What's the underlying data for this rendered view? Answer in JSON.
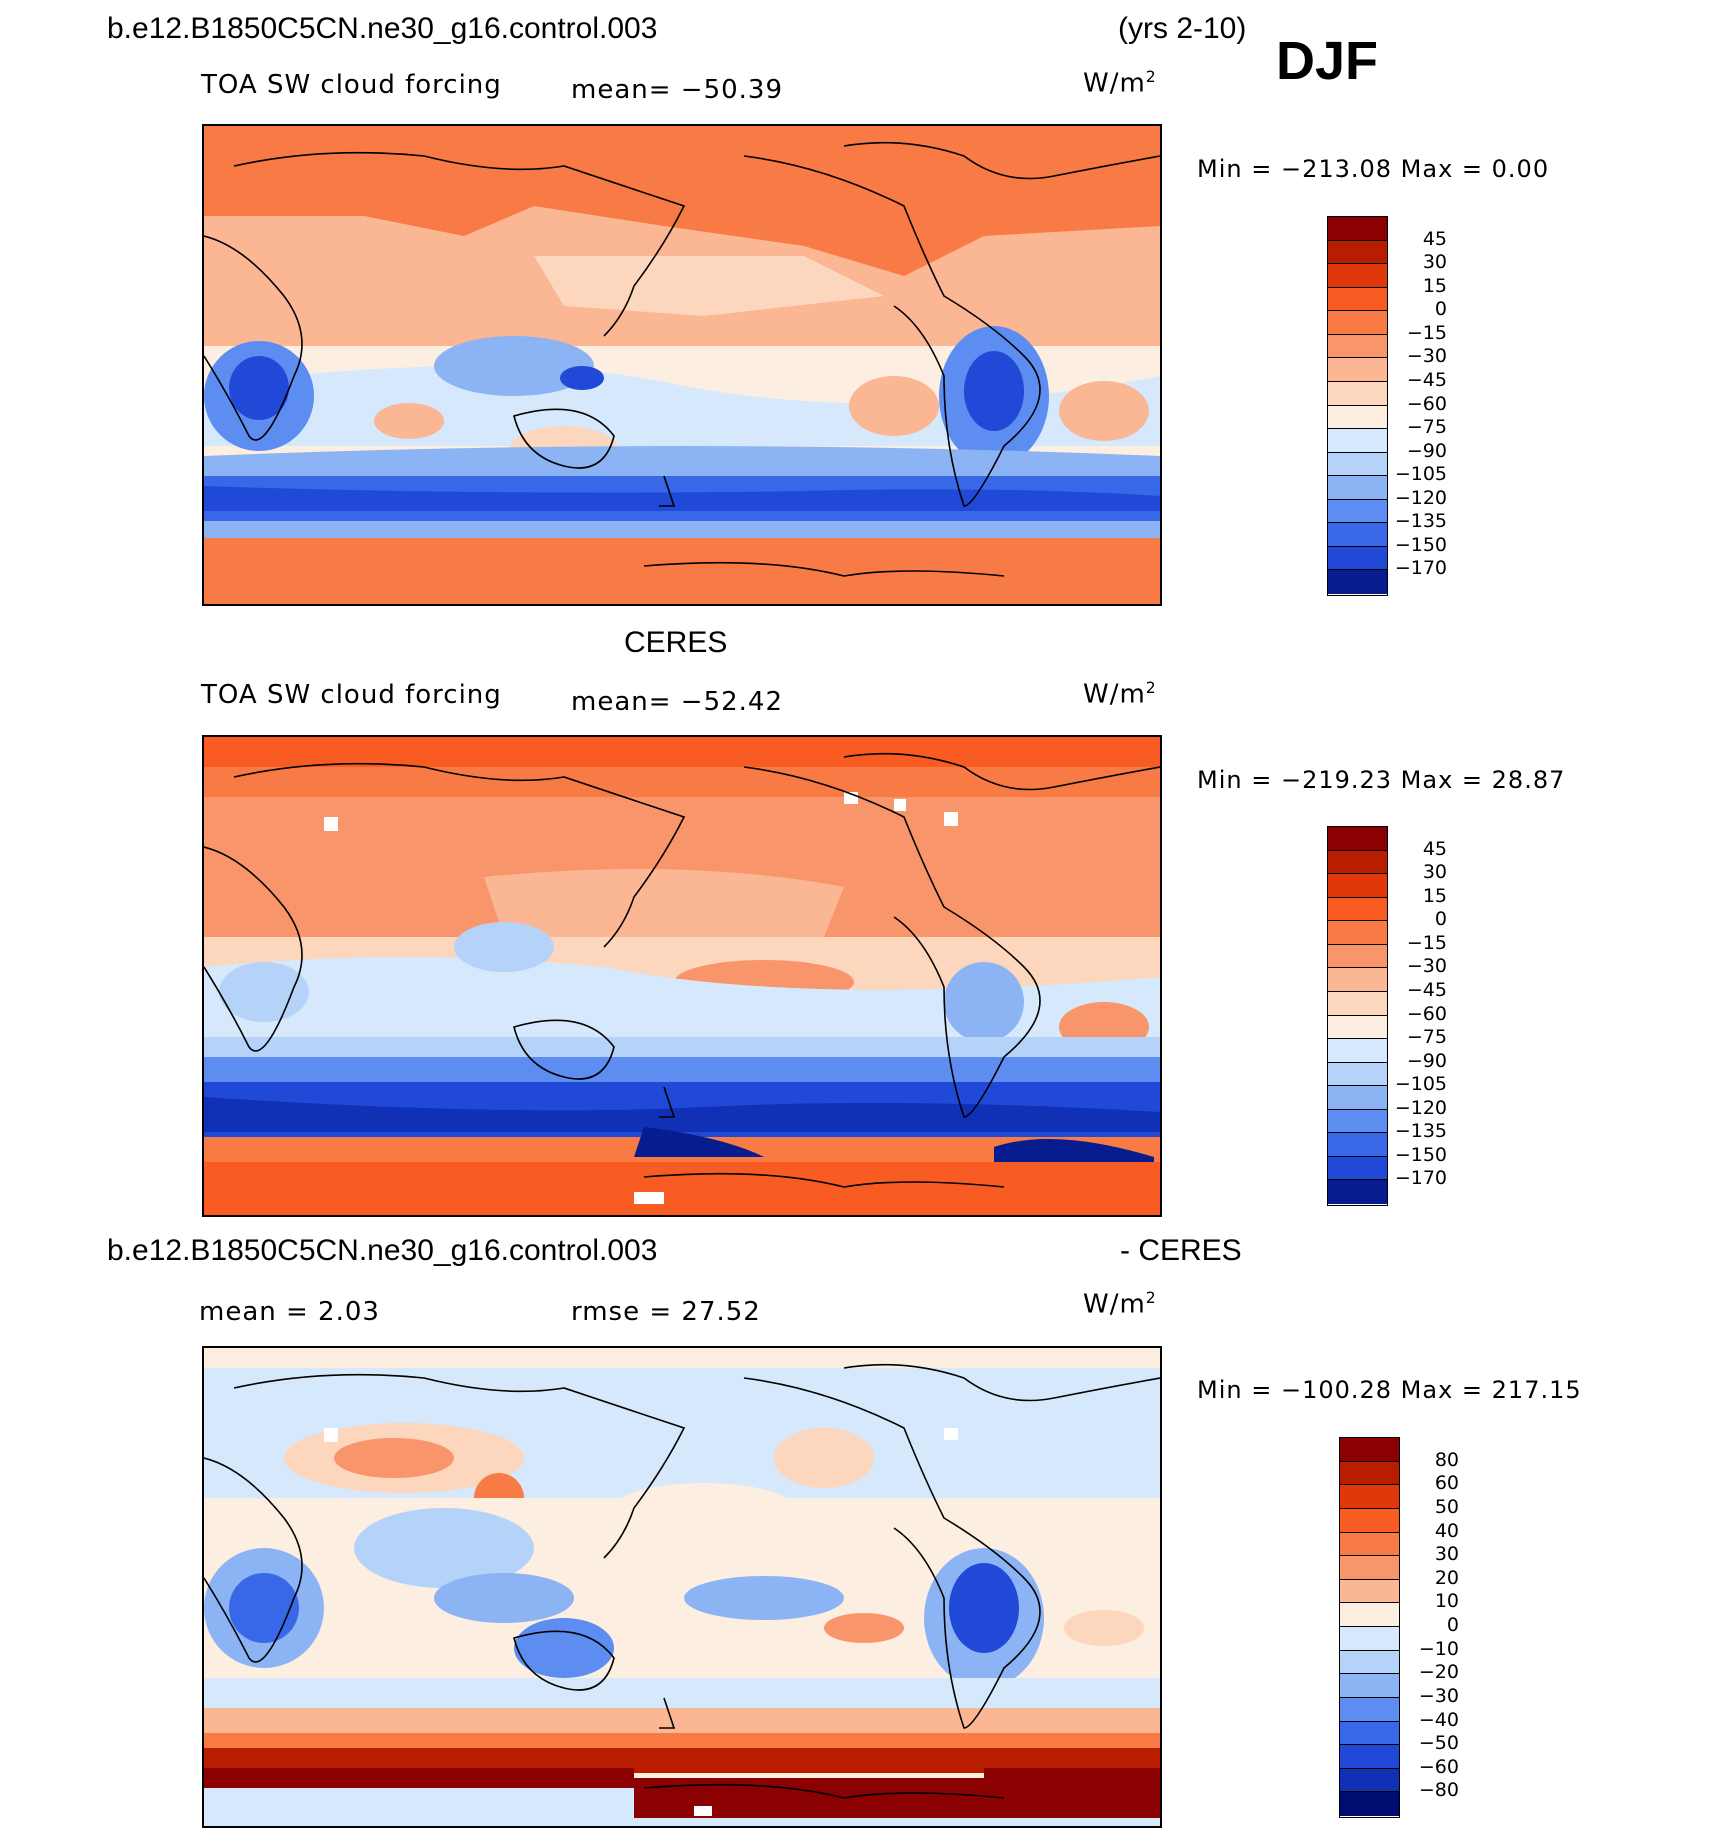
{
  "header": {
    "case_name": "b.e12.B1850C5CN.ne30_g16.control.003",
    "years": "(yrs 2-10)",
    "season": "DJF"
  },
  "panels": [
    {
      "id": "model",
      "title": "",
      "variable": "TOA SW cloud forcing",
      "mean_text": "mean= −50.39",
      "units": "W/m",
      "units_exp": "2",
      "min_max": "Min  =  −213.08  Max  =     0.00",
      "contour_levels": [
        "45",
        "30",
        "15",
        "0",
        "−15",
        "−30",
        "−45",
        "−60",
        "−75",
        "−90",
        "−105",
        "−120",
        "−135",
        "−150",
        "−170"
      ],
      "colors": [
        "#8b0000",
        "#b81d00",
        "#e0380a",
        "#f85c22",
        "#f87a44",
        "#f9956a",
        "#fbb694",
        "#fcd6bd",
        "#fdeee2",
        "#d6e8fb",
        "#b5d2f8",
        "#8cb3f3",
        "#5d8df0",
        "#3868e8",
        "#1f49d6",
        "#1030b5",
        "#061c8f",
        "#000d70"
      ]
    },
    {
      "id": "obs",
      "title": "CERES",
      "variable": "TOA SW cloud forcing",
      "mean_text": "mean= −52.42",
      "units": "W/m",
      "units_exp": "2",
      "min_max": "Min  =  −219.23  Max  =   28.87",
      "contour_levels": [
        "45",
        "30",
        "15",
        "0",
        "−15",
        "−30",
        "−45",
        "−60",
        "−75",
        "−90",
        "−105",
        "−120",
        "−135",
        "−150",
        "−170"
      ]
    },
    {
      "id": "diff",
      "title_left": "b.e12.B1850C5CN.ne30_g16.control.003",
      "title_right": "- CERES",
      "mean_text": "mean  =     2.03",
      "rmse_text": "rmse  =    27.52",
      "units": "W/m",
      "units_exp": "2",
      "min_max": "Min  =  −100.28  Max  =  217.15",
      "contour_levels": [
        "80",
        "60",
        "50",
        "40",
        "30",
        "20",
        "10",
        "0",
        "−10",
        "−20",
        "−30",
        "−40",
        "−50",
        "−60",
        "−80"
      ]
    }
  ]
}
